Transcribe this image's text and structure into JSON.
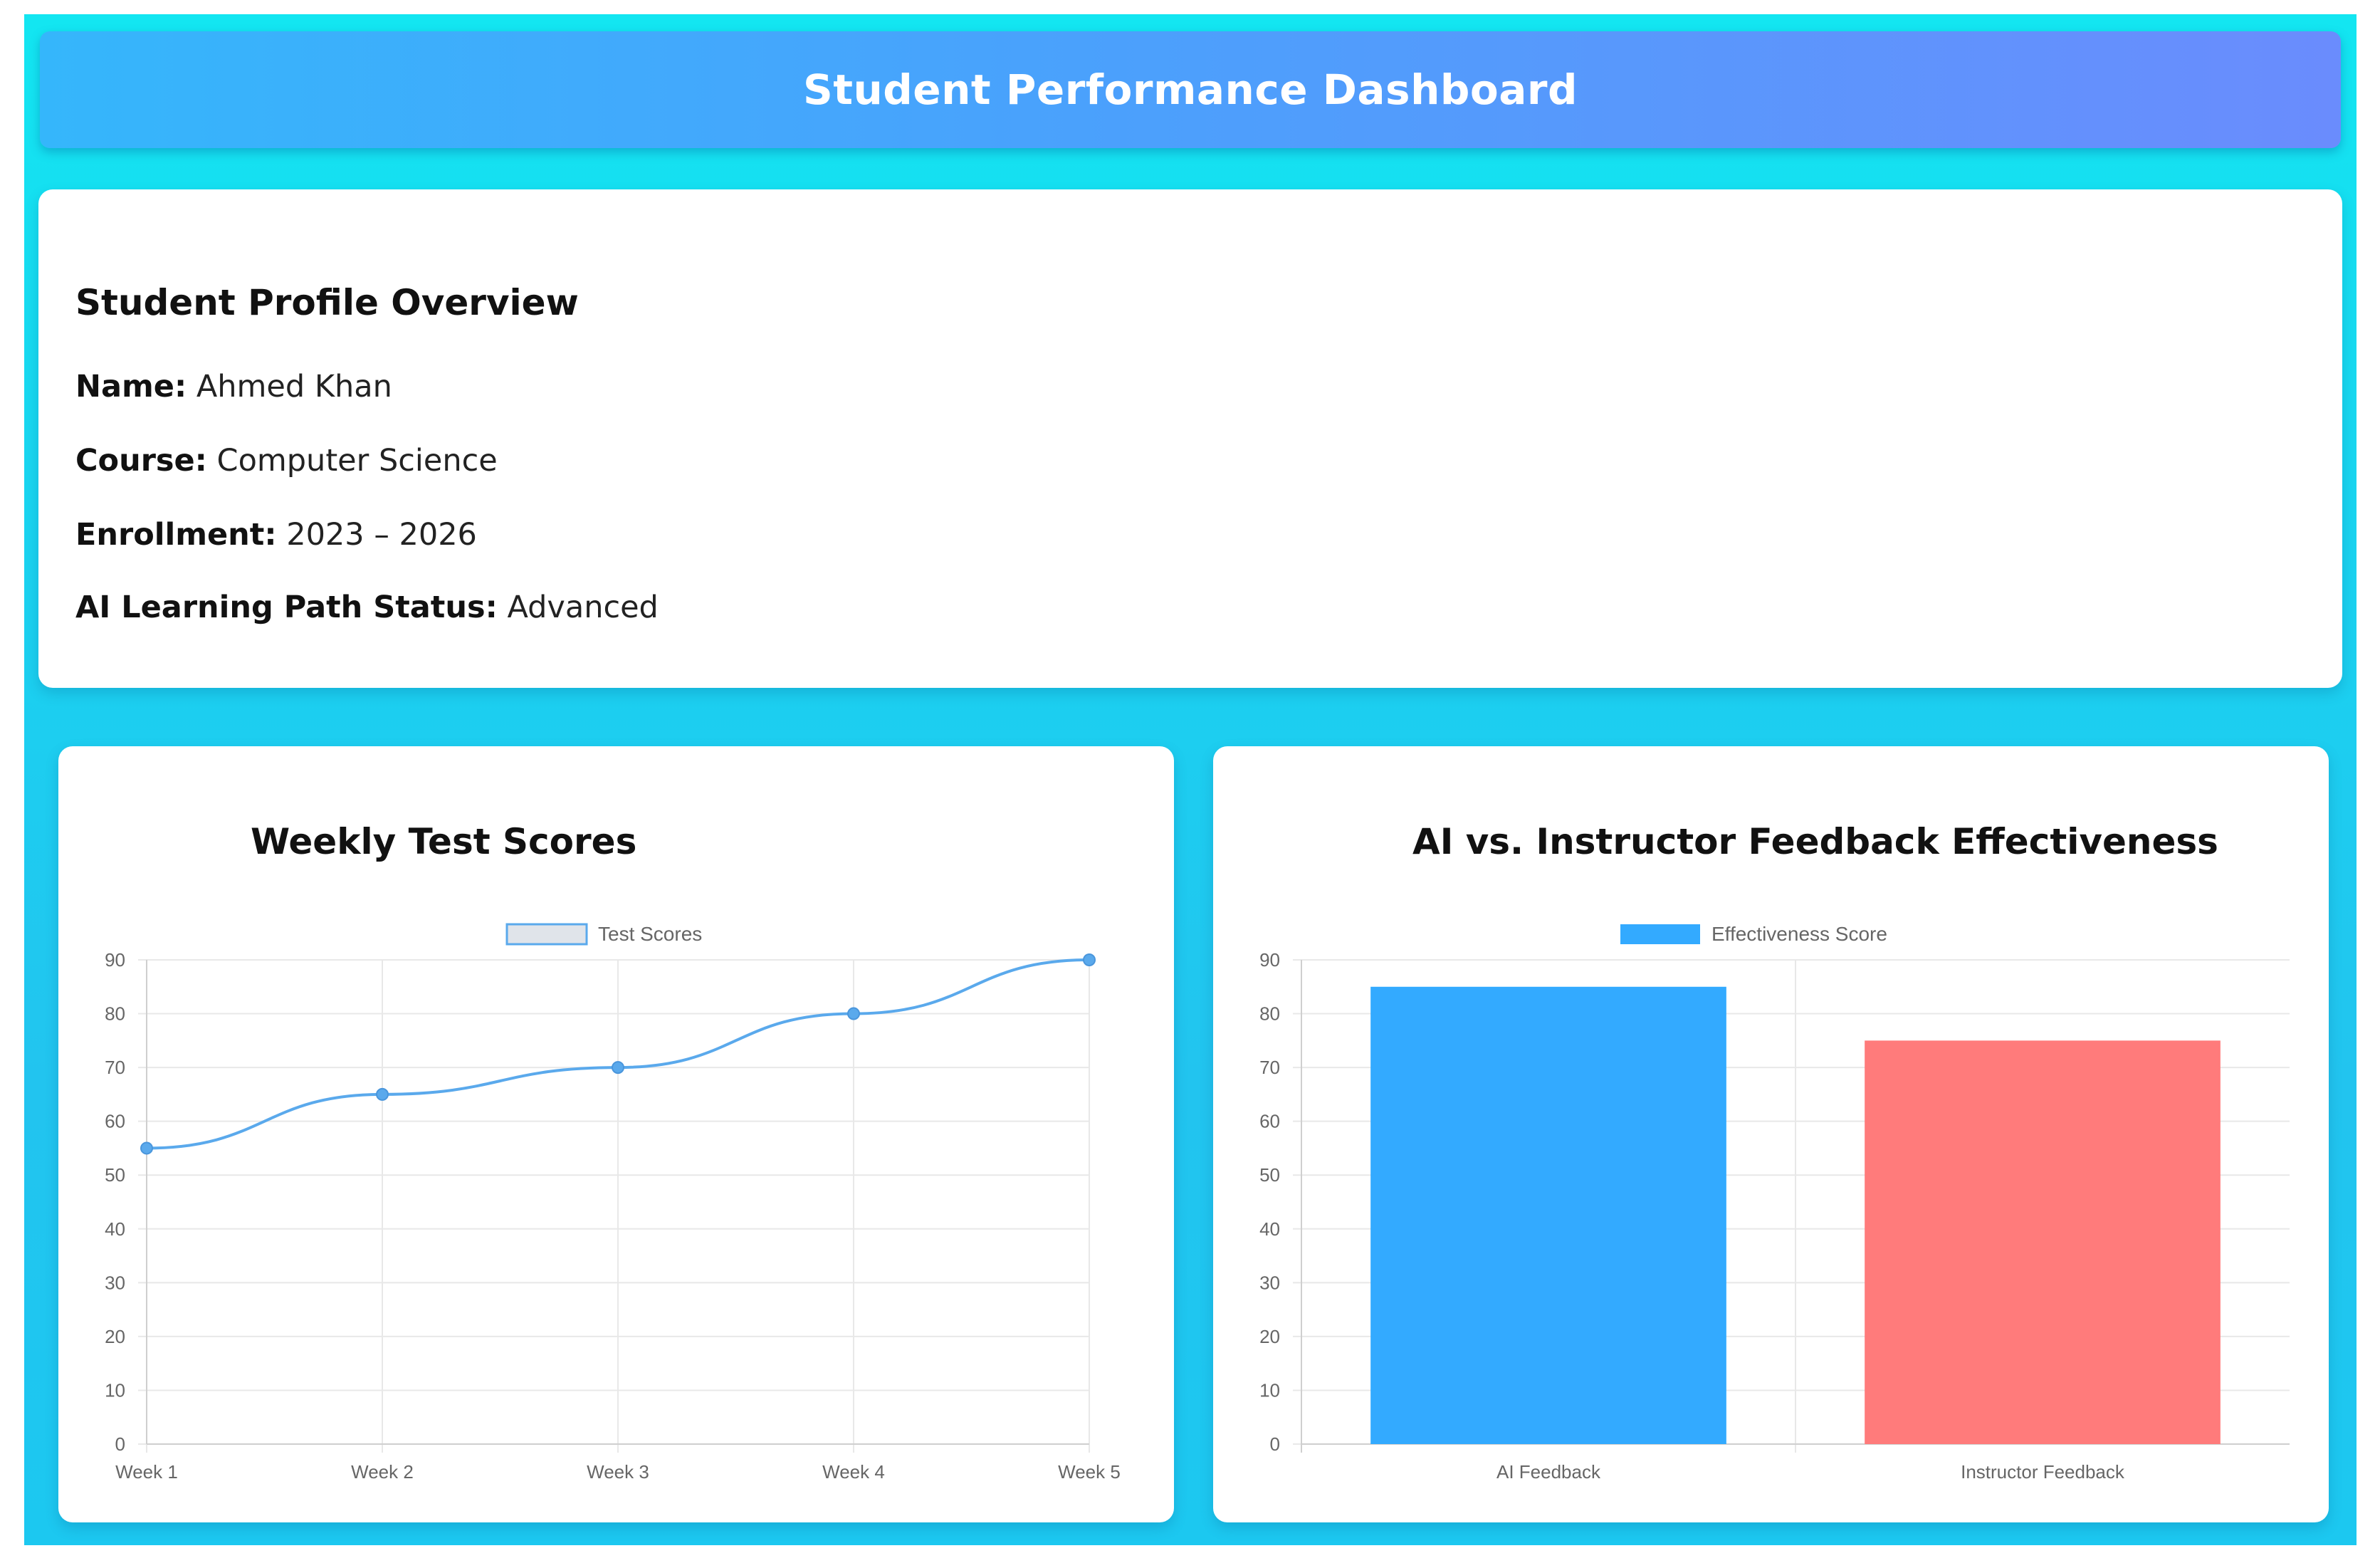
{
  "header": {
    "title": "Student Performance Dashboard"
  },
  "profile": {
    "title": "Student Profile Overview",
    "fields": [
      {
        "label": "Name:",
        "value": "Ahmed Khan"
      },
      {
        "label": "Course:",
        "value": "Computer Science"
      },
      {
        "label": "Enrollment:",
        "value": "2023 – 2026"
      },
      {
        "label": "AI Learning Path Status:",
        "value": "Advanced"
      }
    ]
  },
  "chart_data": [
    {
      "type": "line",
      "title": "Weekly Test Scores",
      "categories": [
        "Week 1",
        "Week 2",
        "Week 3",
        "Week 4",
        "Week 5"
      ],
      "series": [
        {
          "name": "Test Scores",
          "values": [
            55,
            65,
            70,
            80,
            90
          ],
          "color": "#5aa9ec",
          "legend_fill": "#e0e4ea"
        }
      ],
      "y_ticks": [
        0,
        10,
        20,
        30,
        40,
        50,
        60,
        70,
        80,
        90
      ],
      "ylim": [
        0,
        90
      ],
      "grid": true,
      "legend_position": "top-center"
    },
    {
      "type": "bar",
      "title": "AI vs. Instructor Feedback Effectiveness",
      "categories": [
        "AI Feedback",
        "Instructor Feedback"
      ],
      "series": [
        {
          "name": "Effectiveness Score",
          "values": [
            85,
            75
          ],
          "colors": [
            "#33aaff",
            "#ff7b7b"
          ],
          "legend_color": "#33aaff"
        }
      ],
      "y_ticks": [
        0,
        10,
        20,
        30,
        40,
        50,
        60,
        70,
        80,
        90
      ],
      "ylim": [
        0,
        90
      ],
      "grid": true,
      "legend_position": "top-center"
    }
  ]
}
